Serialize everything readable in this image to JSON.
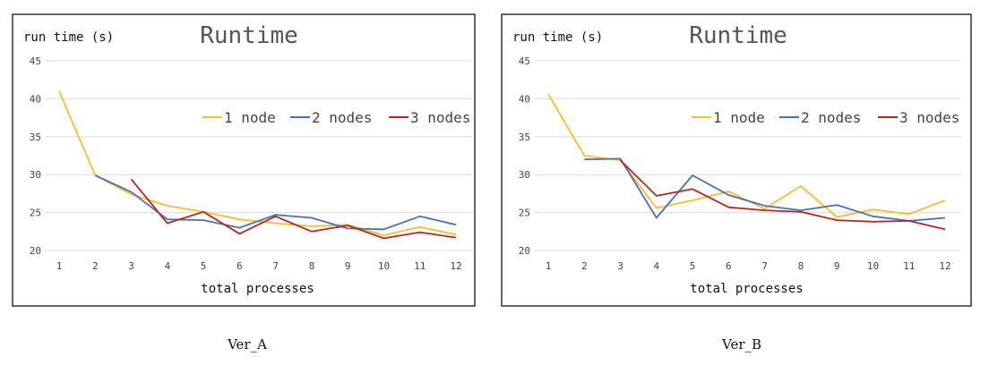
{
  "charts": {
    "chart_data": [
      {
        "type": "line",
        "title": "Runtime",
        "ylabel": "run time (s)",
        "xlabel": "total processes",
        "x": [
          1,
          2,
          3,
          4,
          5,
          6,
          7,
          8,
          9,
          10,
          11,
          12
        ],
        "ylim": [
          20,
          45
        ],
        "yticks": [
          20,
          25,
          30,
          35,
          40,
          45
        ],
        "grid": true,
        "legend": "right",
        "caption": "Ver_A",
        "series": [
          {
            "name": "1 node",
            "color": "#F6BE32",
            "values": [
              41.0,
              29.9,
              27.4,
              25.9,
              25.1,
              24.1,
              23.6,
              23.2,
              23.4,
              22.0,
              23.1,
              22.1
            ]
          },
          {
            "name": "2 nodes",
            "color": "#4A72B0",
            "values": [
              null,
              29.9,
              27.7,
              24.1,
              24.0,
              23.0,
              24.7,
              24.3,
              22.9,
              22.8,
              24.5,
              23.4
            ]
          },
          {
            "name": "3 nodes",
            "color": "#B02A23",
            "values": [
              null,
              null,
              29.4,
              23.6,
              25.1,
              22.2,
              24.5,
              22.5,
              23.3,
              21.6,
              22.4,
              21.7
            ]
          }
        ]
      },
      {
        "type": "line",
        "title": "Runtime",
        "ylabel": "run time (s)",
        "xlabel": "total processes",
        "x": [
          1,
          2,
          3,
          4,
          5,
          6,
          7,
          8,
          9,
          10,
          11,
          12
        ],
        "ylim": [
          20,
          45
        ],
        "yticks": [
          20,
          25,
          30,
          35,
          40,
          45
        ],
        "grid": true,
        "legend": "right",
        "caption": "Ver_B",
        "series": [
          {
            "name": "1 node",
            "color": "#F6BE32",
            "values": [
              40.6,
              32.5,
              31.9,
              25.6,
              26.6,
              27.8,
              25.5,
              28.5,
              24.4,
              25.4,
              24.8,
              26.6
            ]
          },
          {
            "name": "2 nodes",
            "color": "#4A72B0",
            "values": [
              null,
              32.0,
              32.1,
              24.3,
              29.9,
              27.3,
              25.9,
              25.3,
              26.0,
              24.5,
              23.9,
              24.3
            ]
          },
          {
            "name": "3 nodes",
            "color": "#B02A23",
            "values": [
              null,
              null,
              31.9,
              27.2,
              28.1,
              25.7,
              25.3,
              25.1,
              24.0,
              23.8,
              23.9,
              22.8
            ]
          }
        ]
      }
    ]
  }
}
